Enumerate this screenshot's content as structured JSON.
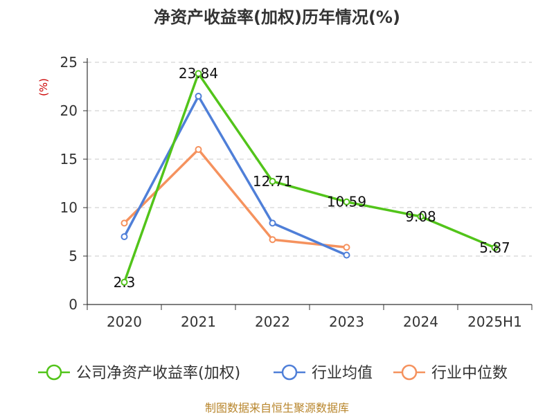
{
  "chart_data": {
    "type": "line",
    "title": "净资产收益率(加权)历年情况(%)",
    "ylabel": "(%)",
    "xlabel": "",
    "categories": [
      "2020",
      "2021",
      "2022",
      "2023",
      "2024",
      "2025H1"
    ],
    "ylim": [
      0,
      25
    ],
    "yticks": [
      0,
      5,
      10,
      15,
      20,
      25
    ],
    "grid": true,
    "legend_position": "bottom",
    "series": [
      {
        "name": "公司净资产收益率(加权)",
        "color": "#52c41a",
        "values": [
          2.3,
          23.84,
          12.71,
          10.59,
          9.08,
          5.87
        ],
        "labels": [
          "2.3",
          "23.84",
          "12.71",
          "10.59",
          "9.08",
          "5.87"
        ]
      },
      {
        "name": "行业均值",
        "color": "#4f7fd8",
        "values": [
          7.0,
          21.5,
          8.4,
          5.1,
          null,
          null
        ]
      },
      {
        "name": "行业中位数",
        "color": "#f5925e",
        "values": [
          8.4,
          16.0,
          6.7,
          5.9,
          null,
          null
        ]
      }
    ]
  },
  "source": "制图数据来自恒生聚源数据库"
}
